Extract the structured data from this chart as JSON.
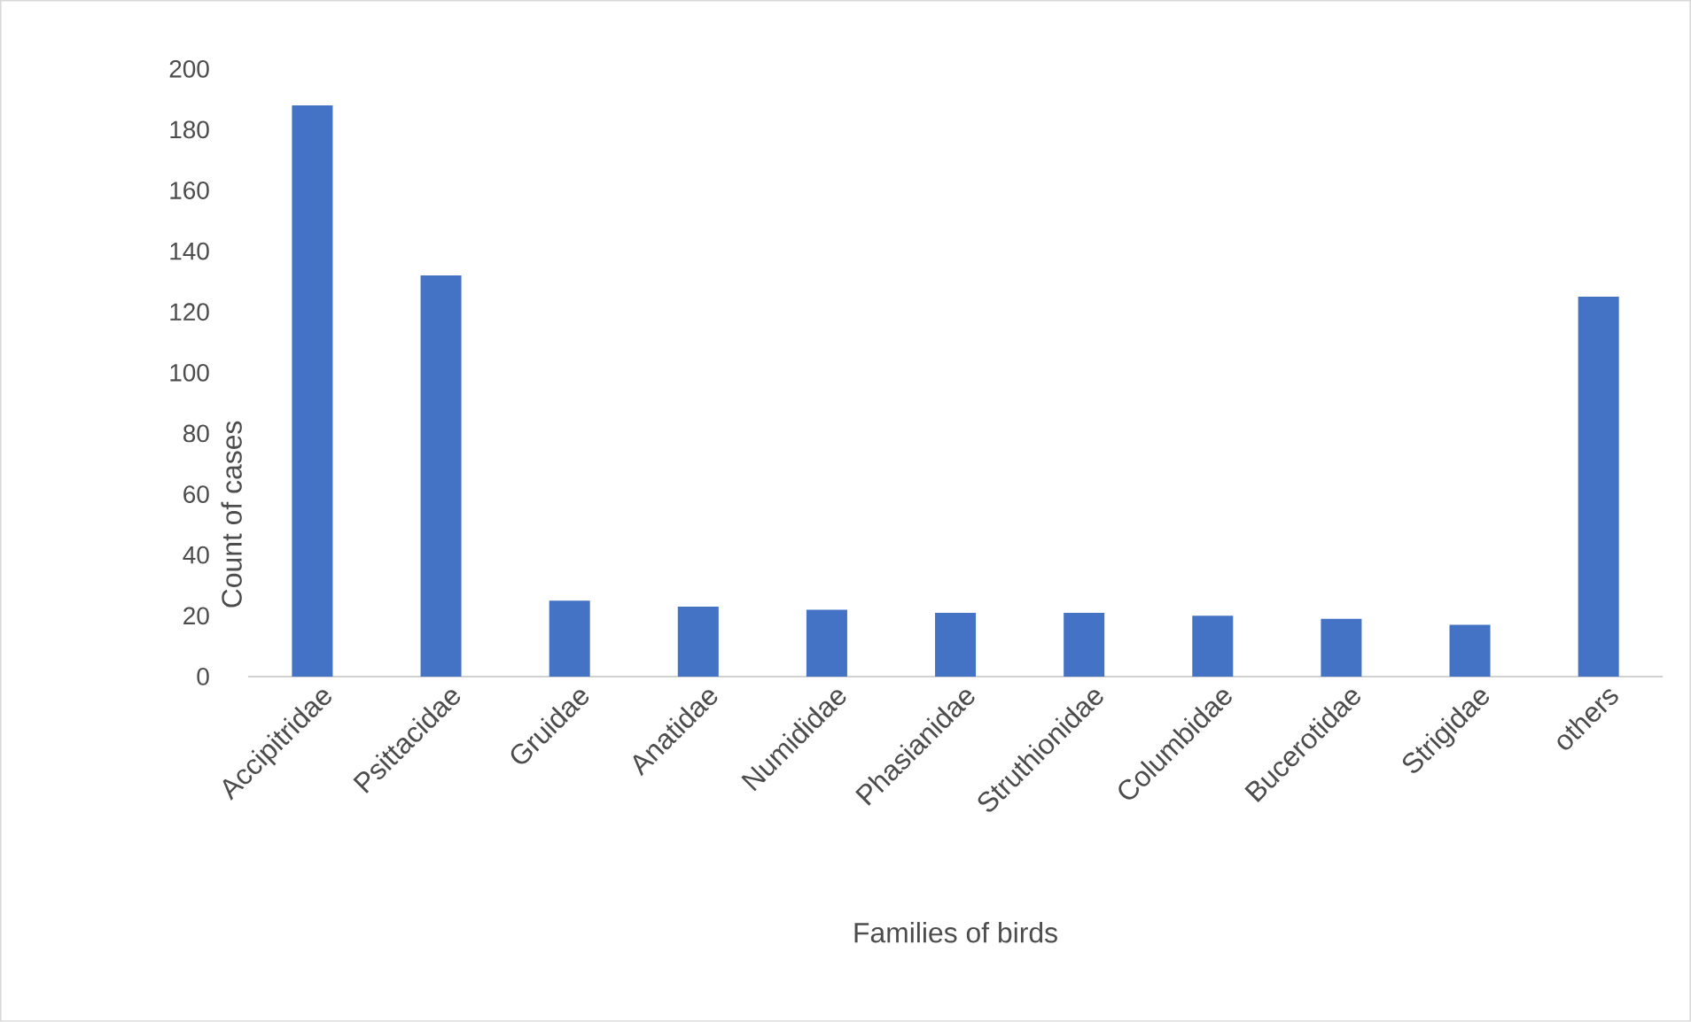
{
  "chart_data": {
    "type": "bar",
    "xlabel": "Families of birds",
    "ylabel": "Count of cases",
    "categories": [
      "Accipitridae",
      "Psittacidae",
      "Gruidae",
      "Anatidae",
      "Numididae",
      "Phasianidae",
      "Struthionidae",
      "Columbidae",
      "Bucerotidae",
      "Strigidae",
      "others"
    ],
    "values": [
      188,
      132,
      25,
      23,
      22,
      21,
      21,
      20,
      19,
      17,
      125
    ],
    "color": "#4472c4",
    "ylim": [
      0,
      200
    ],
    "yticks": [
      0,
      20,
      40,
      60,
      80,
      100,
      120,
      140,
      160,
      180,
      200
    ]
  }
}
